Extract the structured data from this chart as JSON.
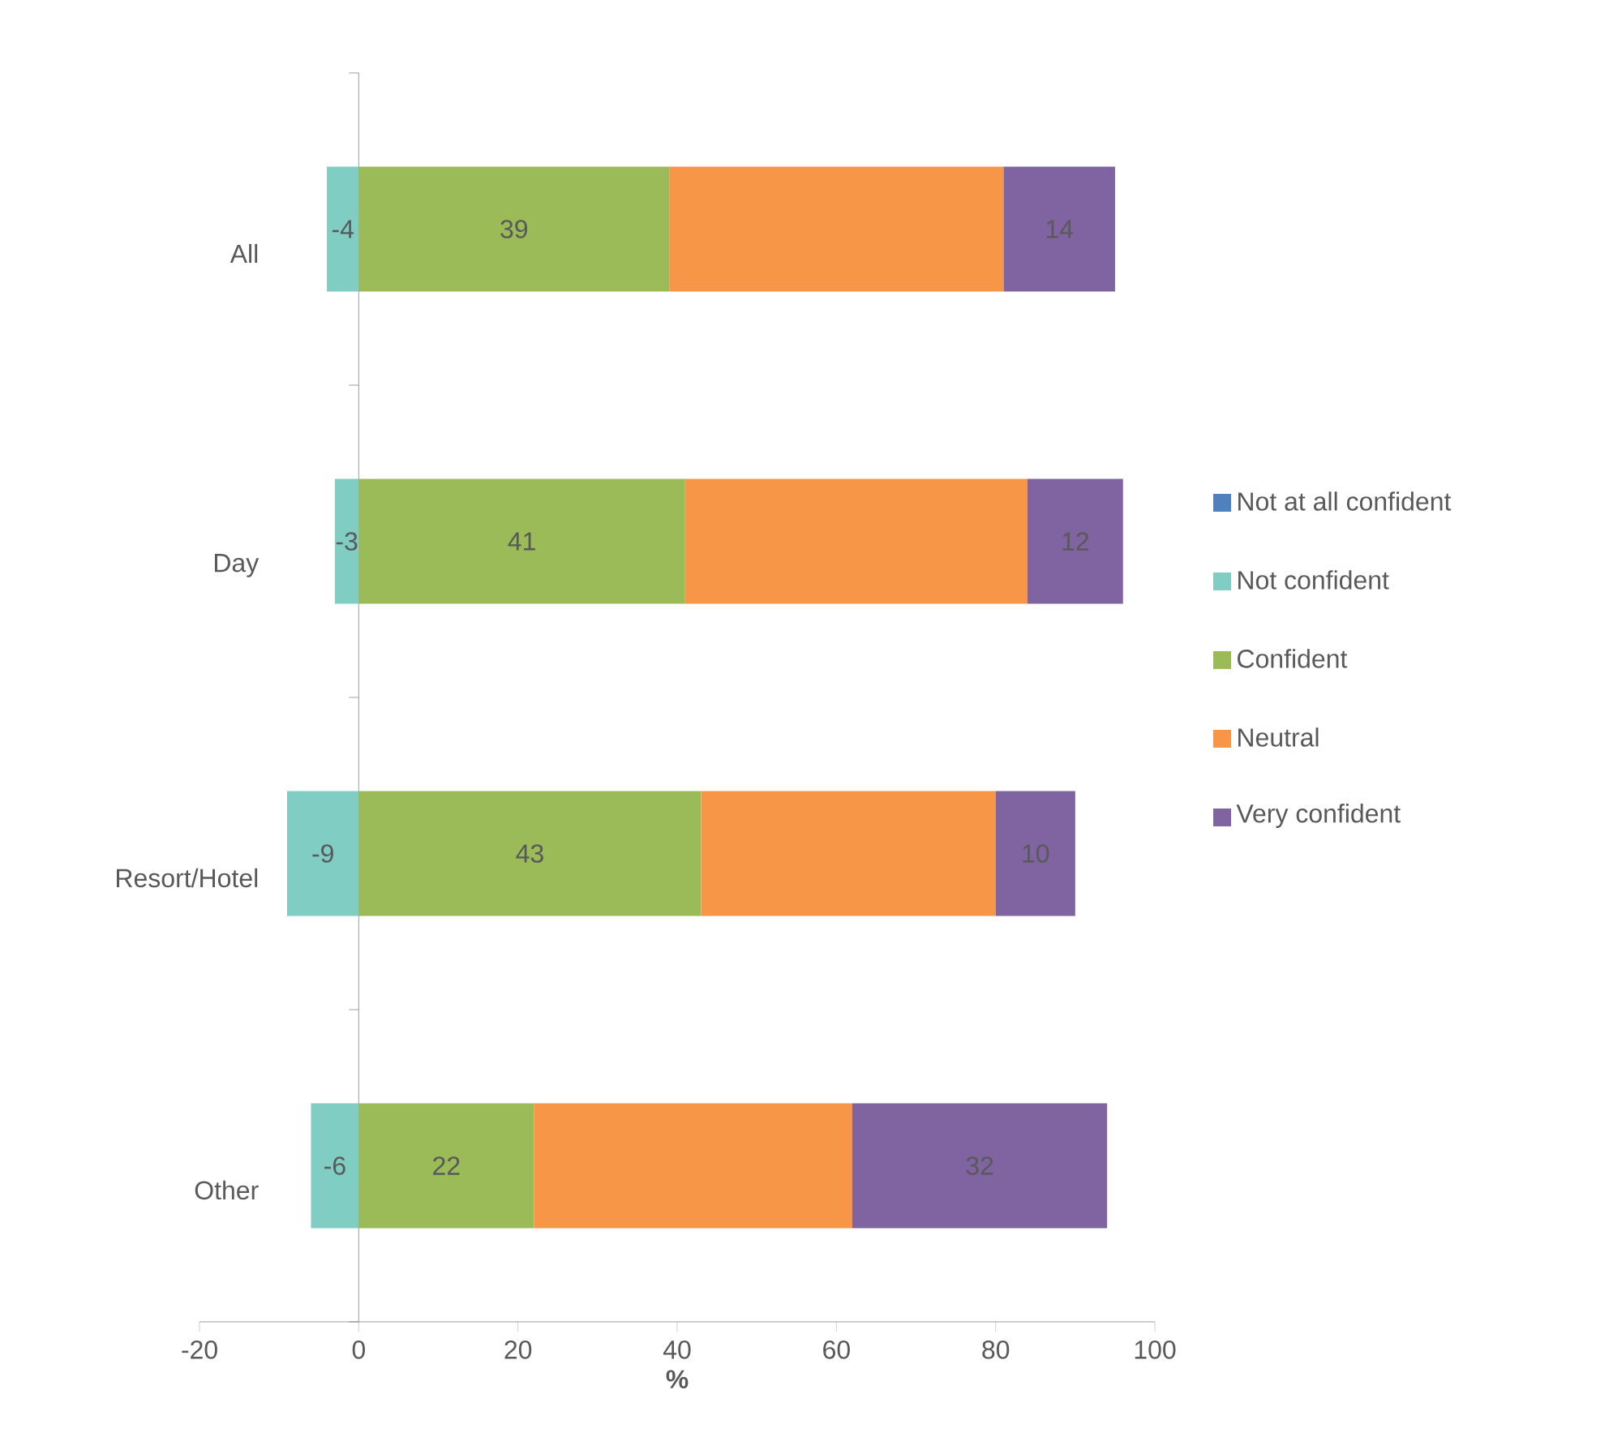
{
  "chart_data": {
    "type": "bar",
    "orientation": "horizontal",
    "stacked": true,
    "categories": [
      "All",
      "Day",
      "Resort/Hotel",
      "Other"
    ],
    "xlabel": "%",
    "xlim": [
      -20,
      100
    ],
    "xticks": [
      -20,
      0,
      20,
      40,
      60,
      80,
      100
    ],
    "series": [
      {
        "name": "Not at all confident",
        "color": "#4f81bd",
        "values": [
          null,
          null,
          null,
          null
        ]
      },
      {
        "name": "Not confident",
        "color": "#7fcdc3",
        "values": [
          -4,
          -3,
          -9,
          -6
        ],
        "value_labels": [
          "-4",
          "-3",
          "-9",
          "-6"
        ]
      },
      {
        "name": "Confident",
        "color": "#9bbb59",
        "values": [
          39,
          41,
          43,
          22
        ],
        "value_labels": [
          "39",
          "41",
          "43",
          "22"
        ]
      },
      {
        "name": "Neutral",
        "color": "#f79646",
        "values": [
          42,
          43,
          37,
          40
        ]
      },
      {
        "name": "Very confident",
        "color": "#8064a2",
        "values": [
          14,
          12,
          10,
          32
        ],
        "value_labels": [
          "14",
          "12",
          "10",
          "32"
        ]
      }
    ],
    "legend": "right"
  }
}
